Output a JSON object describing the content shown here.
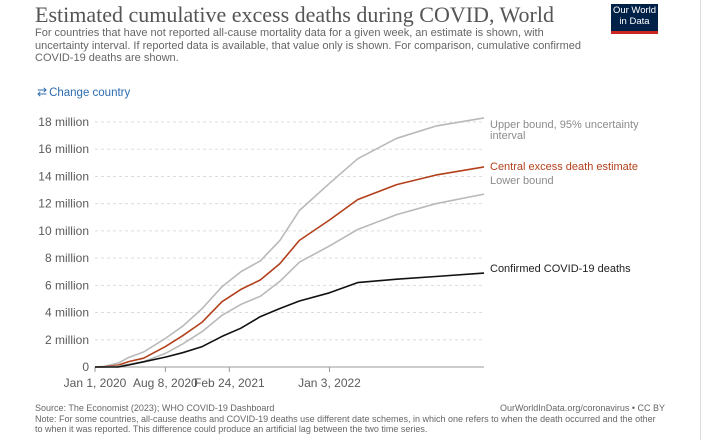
{
  "header": {
    "title": "Estimated cumulative excess deaths during COVID, World",
    "subtitle": "For countries that have not reported all-cause mortality data for a given week, an estimate is shown, with uncertainty interval. If reported data is available, that value only is shown. For comparison, cumulative confirmed COVID-19 deaths are shown.",
    "logo_line1": "Our World",
    "logo_line2": "in Data",
    "change_country": "Change country"
  },
  "footer": {
    "source": "Source: The Economist (2023); WHO COVID-19 Dashboard",
    "url": "OurWorldInData.org/coronavirus • CC BY",
    "note": "Note: For some countries, all-cause deaths and COVID-19 deaths use different date schemes, in which one refers to when the death occurred and the other to when it was reported. This difference could produce an artificial lag between the two time series."
  },
  "colors": {
    "upper": "#b9b9b9",
    "lower": "#b9b9b9",
    "central": "#b2401b",
    "confirmed": "#111111",
    "grid": "#dddddd",
    "axis": "#999999"
  },
  "chart_data": {
    "type": "line",
    "title": "Estimated cumulative excess deaths during COVID, World",
    "xlabel": "",
    "ylabel": "",
    "ylim": [
      0,
      18000000
    ],
    "yticks": [
      0,
      2000000,
      4000000,
      6000000,
      8000000,
      10000000,
      12000000,
      14000000,
      16000000,
      18000000
    ],
    "ytick_labels": [
      "0",
      "2 million",
      "4 million",
      "6 million",
      "8 million",
      "10 million",
      "12 million",
      "14 million",
      "16 million",
      "18 million"
    ],
    "xlim": [
      "2020-01-01",
      "2023-05-01"
    ],
    "xticks": [
      "2020-01-01",
      "2020-08-08",
      "2021-02-24",
      "2022-01-03"
    ],
    "xtick_labels": [
      "Jan 1, 2020",
      "Aug 8, 2020",
      "Feb 24, 2021",
      "Jan 3, 2022"
    ],
    "grid": true,
    "series": [
      {
        "name": "Upper bound, 95% uncertainty interval",
        "color": "#b9b9b9",
        "points": [
          [
            "2020-01-01",
            0
          ],
          [
            "2020-02-01",
            50000
          ],
          [
            "2020-03-15",
            300000
          ],
          [
            "2020-04-15",
            700000
          ],
          [
            "2020-06-01",
            1100000
          ],
          [
            "2020-08-08",
            2100000
          ],
          [
            "2020-10-01",
            3000000
          ],
          [
            "2020-12-01",
            4300000
          ],
          [
            "2021-02-01",
            5900000
          ],
          [
            "2021-04-01",
            7000000
          ],
          [
            "2021-06-01",
            7800000
          ],
          [
            "2021-08-01",
            9300000
          ],
          [
            "2021-10-01",
            11500000
          ],
          [
            "2022-01-03",
            13500000
          ],
          [
            "2022-04-01",
            15300000
          ],
          [
            "2022-08-01",
            16800000
          ],
          [
            "2022-12-01",
            17700000
          ],
          [
            "2023-05-01",
            18300000
          ]
        ]
      },
      {
        "name": "Central excess death estimate",
        "color": "#b2401b",
        "points": [
          [
            "2020-01-01",
            0
          ],
          [
            "2020-02-01",
            20000
          ],
          [
            "2020-03-15",
            150000
          ],
          [
            "2020-04-15",
            400000
          ],
          [
            "2020-06-01",
            650000
          ],
          [
            "2020-08-08",
            1500000
          ],
          [
            "2020-10-01",
            2300000
          ],
          [
            "2020-12-01",
            3300000
          ],
          [
            "2021-02-01",
            4800000
          ],
          [
            "2021-04-01",
            5700000
          ],
          [
            "2021-06-01",
            6400000
          ],
          [
            "2021-08-01",
            7600000
          ],
          [
            "2021-10-01",
            9300000
          ],
          [
            "2022-01-03",
            10800000
          ],
          [
            "2022-04-01",
            12300000
          ],
          [
            "2022-08-01",
            13400000
          ],
          [
            "2022-12-01",
            14100000
          ],
          [
            "2023-05-01",
            14700000
          ]
        ]
      },
      {
        "name": "Lower bound",
        "color": "#b9b9b9",
        "points": [
          [
            "2020-01-01",
            0
          ],
          [
            "2020-02-01",
            5000
          ],
          [
            "2020-03-15",
            60000
          ],
          [
            "2020-04-15",
            200000
          ],
          [
            "2020-06-01",
            400000
          ],
          [
            "2020-08-08",
            1000000
          ],
          [
            "2020-10-01",
            1700000
          ],
          [
            "2020-12-01",
            2600000
          ],
          [
            "2021-02-01",
            3800000
          ],
          [
            "2021-04-01",
            4600000
          ],
          [
            "2021-06-01",
            5200000
          ],
          [
            "2021-08-01",
            6300000
          ],
          [
            "2021-10-01",
            7700000
          ],
          [
            "2022-01-03",
            8900000
          ],
          [
            "2022-04-01",
            10100000
          ],
          [
            "2022-08-01",
            11200000
          ],
          [
            "2022-12-01",
            12000000
          ],
          [
            "2023-05-01",
            12700000
          ]
        ]
      },
      {
        "name": "Confirmed COVID-19 deaths",
        "color": "#111111",
        "points": [
          [
            "2020-01-01",
            0
          ],
          [
            "2020-02-01",
            0
          ],
          [
            "2020-03-15",
            10000
          ],
          [
            "2020-04-15",
            150000
          ],
          [
            "2020-06-01",
            380000
          ],
          [
            "2020-08-08",
            730000
          ],
          [
            "2020-10-01",
            1050000
          ],
          [
            "2020-12-01",
            1500000
          ],
          [
            "2021-02-01",
            2250000
          ],
          [
            "2021-04-01",
            2850000
          ],
          [
            "2021-06-01",
            3700000
          ],
          [
            "2021-08-01",
            4300000
          ],
          [
            "2021-10-01",
            4850000
          ],
          [
            "2022-01-03",
            5450000
          ],
          [
            "2022-04-01",
            6200000
          ],
          [
            "2022-08-01",
            6450000
          ],
          [
            "2022-12-01",
            6650000
          ],
          [
            "2023-05-01",
            6900000
          ]
        ]
      }
    ]
  }
}
